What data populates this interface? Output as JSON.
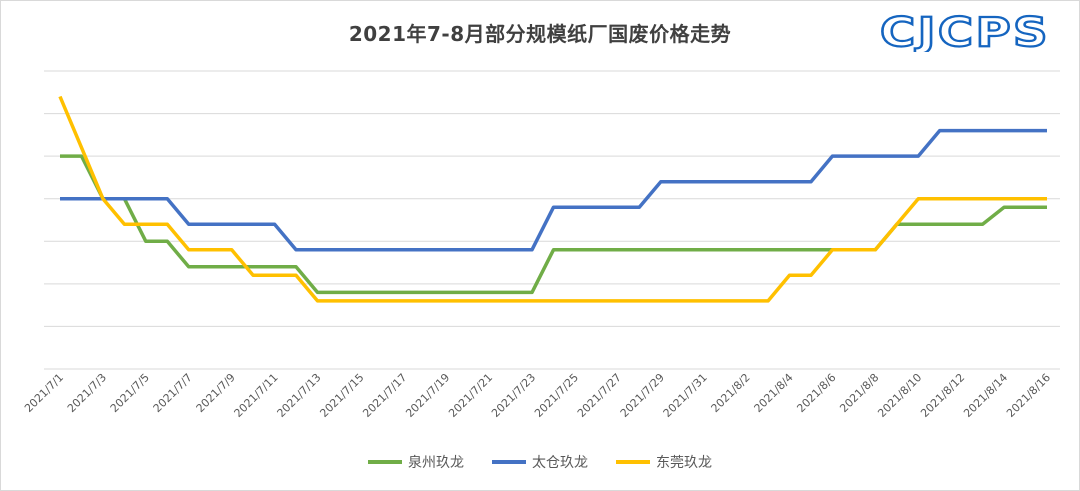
{
  "title": "2021年7-8月部分规模纸厂国废价格走势",
  "logo_text": "CJCPS",
  "colors": {
    "quanzhou": "#70AD47",
    "taicang": "#4472C4",
    "dongguan": "#FFC000",
    "grid": "#d9d9d9",
    "logo": "#1565c0"
  },
  "chart_data": {
    "type": "line",
    "title": "2021年7-8月部分规模纸厂国废价格走势",
    "xlabel": "",
    "ylabel": "",
    "y_tick_labels_visible": false,
    "ylim": [
      0,
      7
    ],
    "grid": true,
    "legend_position": "bottom",
    "x": [
      "2021/7/1",
      "2021/7/2",
      "2021/7/3",
      "2021/7/4",
      "2021/7/5",
      "2021/7/6",
      "2021/7/7",
      "2021/7/8",
      "2021/7/9",
      "2021/7/10",
      "2021/7/11",
      "2021/7/12",
      "2021/7/13",
      "2021/7/14",
      "2021/7/15",
      "2021/7/16",
      "2021/7/17",
      "2021/7/18",
      "2021/7/19",
      "2021/7/20",
      "2021/7/21",
      "2021/7/22",
      "2021/7/23",
      "2021/7/24",
      "2021/7/25",
      "2021/7/26",
      "2021/7/27",
      "2021/7/28",
      "2021/7/29",
      "2021/7/30",
      "2021/7/31",
      "2021/8/1",
      "2021/8/2",
      "2021/8/3",
      "2021/8/4",
      "2021/8/5",
      "2021/8/6",
      "2021/8/7",
      "2021/8/8",
      "2021/8/9",
      "2021/8/10",
      "2021/8/11",
      "2021/8/12",
      "2021/8/13",
      "2021/8/14",
      "2021/8/15",
      "2021/8/16"
    ],
    "x_tick_labels": [
      "2021/7/1",
      "2021/7/3",
      "2021/7/5",
      "2021/7/7",
      "2021/7/9",
      "2021/7/11",
      "2021/7/13",
      "2021/7/15",
      "2021/7/17",
      "2021/7/19",
      "2021/7/21",
      "2021/7/23",
      "2021/7/25",
      "2021/7/27",
      "2021/7/29",
      "2021/7/31",
      "2021/8/2",
      "2021/8/4",
      "2021/8/6",
      "2021/8/8",
      "2021/8/10",
      "2021/8/12",
      "2021/8/14",
      "2021/8/16"
    ],
    "series": [
      {
        "name": "泉州玖龙",
        "color": "#70AD47",
        "values": [
          5,
          5,
          4,
          4,
          3,
          3,
          2.4,
          2.4,
          2.4,
          2.4,
          2.4,
          2.4,
          1.8,
          1.8,
          1.8,
          1.8,
          1.8,
          1.8,
          1.8,
          1.8,
          1.8,
          1.8,
          1.8,
          2.8,
          2.8,
          2.8,
          2.8,
          2.8,
          2.8,
          2.8,
          2.8,
          2.8,
          2.8,
          2.8,
          2.8,
          2.8,
          2.8,
          2.8,
          2.8,
          3.4,
          3.4,
          3.4,
          3.4,
          3.4,
          3.8,
          3.8,
          3.8
        ]
      },
      {
        "name": "太仓玖龙",
        "color": "#4472C4",
        "values": [
          4,
          4,
          4,
          4,
          4,
          4,
          3.4,
          3.4,
          3.4,
          3.4,
          3.4,
          2.8,
          2.8,
          2.8,
          2.8,
          2.8,
          2.8,
          2.8,
          2.8,
          2.8,
          2.8,
          2.8,
          2.8,
          3.8,
          3.8,
          3.8,
          3.8,
          3.8,
          4.4,
          4.4,
          4.4,
          4.4,
          4.4,
          4.4,
          4.4,
          4.4,
          5,
          5,
          5,
          5,
          5,
          5.6,
          5.6,
          5.6,
          5.6,
          5.6,
          5.6
        ]
      },
      {
        "name": "东莞玖龙",
        "color": "#FFC000",
        "values": [
          6.4,
          5.2,
          4,
          3.4,
          3.4,
          3.4,
          2.8,
          2.8,
          2.8,
          2.2,
          2.2,
          2.2,
          1.6,
          1.6,
          1.6,
          1.6,
          1.6,
          1.6,
          1.6,
          1.6,
          1.6,
          1.6,
          1.6,
          1.6,
          1.6,
          1.6,
          1.6,
          1.6,
          1.6,
          1.6,
          1.6,
          1.6,
          1.6,
          1.6,
          2.2,
          2.2,
          2.8,
          2.8,
          2.8,
          3.4,
          4,
          4,
          4,
          4,
          4,
          4,
          4
        ]
      }
    ]
  }
}
